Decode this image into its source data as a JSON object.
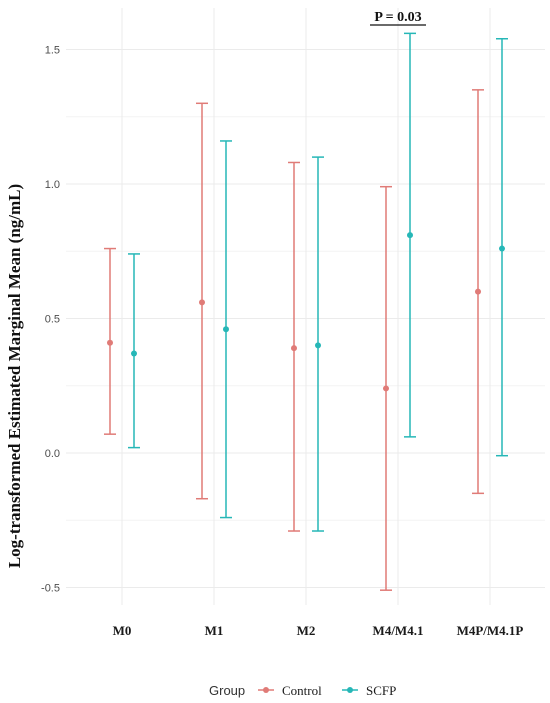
{
  "chart_data": {
    "type": "errorbar",
    "title": "",
    "ylabel": "Log-transformed Estimated Marginal Mean (ng/mL)",
    "xlabel": "",
    "ylim": [
      -0.6,
      1.65
    ],
    "yticks": [
      -0.5,
      0.0,
      0.5,
      1.0,
      1.5
    ],
    "ytick_labels": [
      "-0.5",
      "0.0",
      "0.5",
      "1.0",
      "1.5"
    ],
    "grid": true,
    "categories": [
      "M0",
      "M1",
      "M2",
      "M4/M4.1",
      "M4P/M4.1P"
    ],
    "series": [
      {
        "name": "Control",
        "color": "#e07b77",
        "mean": [
          0.41,
          0.56,
          0.39,
          0.24,
          0.6
        ],
        "lower": [
          0.07,
          -0.17,
          -0.29,
          -0.51,
          -0.15
        ],
        "upper": [
          0.76,
          1.3,
          1.08,
          0.99,
          1.35
        ]
      },
      {
        "name": "SCFP",
        "color": "#26b7b7",
        "mean": [
          0.37,
          0.46,
          0.4,
          0.81,
          0.76
        ],
        "lower": [
          0.02,
          -0.24,
          -0.29,
          0.06,
          -0.01
        ],
        "upper": [
          0.74,
          1.16,
          1.1,
          1.56,
          1.54
        ]
      }
    ],
    "annotations": [
      {
        "text": "P = 0.03",
        "category": "M4/M4.1",
        "underline": true
      }
    ],
    "legend": {
      "title": "Group",
      "placement": "bottom",
      "entries": [
        "Control",
        "SCFP"
      ]
    }
  }
}
